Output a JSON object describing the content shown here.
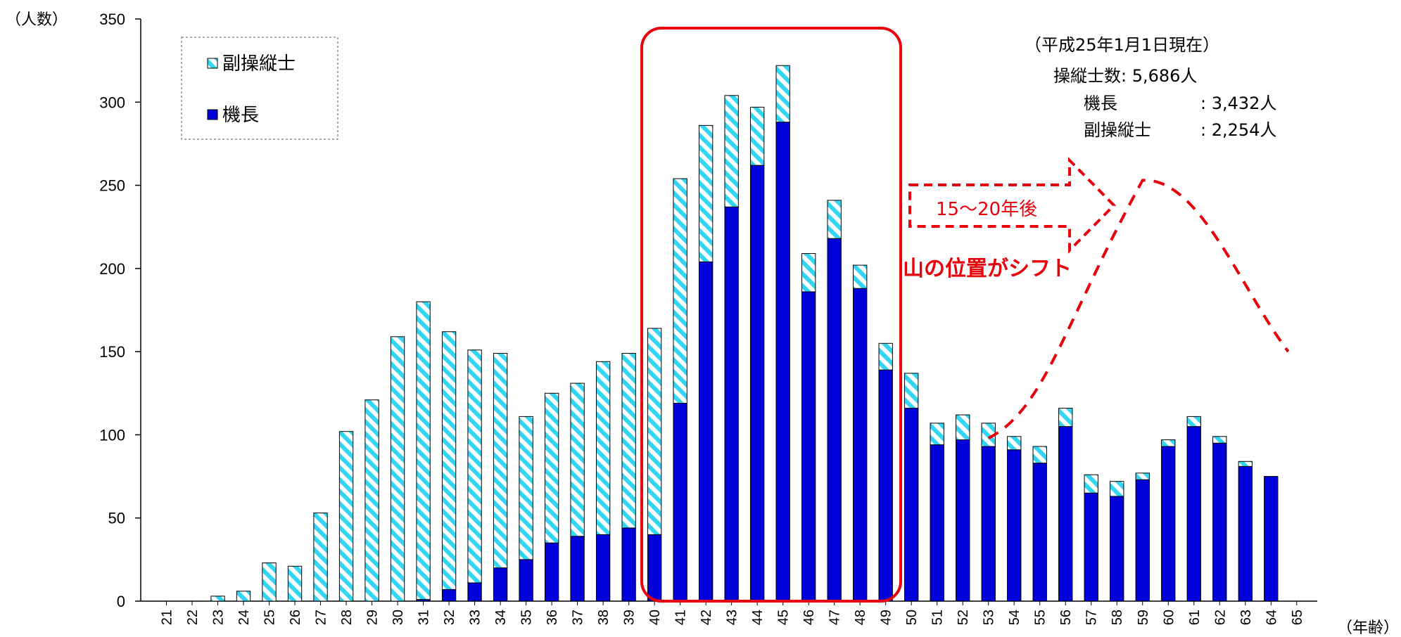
{
  "chart_data": {
    "type": "bar",
    "stacked": true,
    "ylabel": "（人数）",
    "xlabel": "（年齢）",
    "ylim": [
      0,
      350
    ],
    "yticks": [
      0,
      50,
      100,
      150,
      200,
      250,
      300,
      350
    ],
    "categories": [
      "21",
      "22",
      "23",
      "24",
      "25",
      "26",
      "27",
      "28",
      "29",
      "30",
      "31",
      "32",
      "33",
      "34",
      "35",
      "36",
      "37",
      "38",
      "39",
      "40",
      "41",
      "42",
      "43",
      "44",
      "45",
      "46",
      "47",
      "48",
      "49",
      "50",
      "51",
      "52",
      "53",
      "54",
      "55",
      "56",
      "57",
      "58",
      "59",
      "60",
      "61",
      "62",
      "63",
      "64",
      "65"
    ],
    "series": [
      {
        "name": "機長",
        "color": "#0000d8",
        "values": [
          0,
          0,
          0,
          0,
          0,
          0,
          0,
          0,
          0,
          0,
          1,
          7,
          11,
          20,
          25,
          35,
          39,
          40,
          44,
          40,
          119,
          204,
          237,
          262,
          288,
          186,
          218,
          188,
          139,
          116,
          94,
          97,
          93,
          91,
          83,
          105,
          65,
          63,
          73,
          93,
          105,
          95,
          81,
          75,
          0
        ]
      },
      {
        "name": "副操縦士",
        "color": "#33d6f2",
        "pattern": "diagonal-stripes",
        "values": [
          0,
          0,
          3,
          6,
          23,
          21,
          53,
          102,
          121,
          159,
          179,
          155,
          140,
          129,
          86,
          90,
          92,
          104,
          105,
          124,
          135,
          82,
          67,
          35,
          34,
          23,
          23,
          14,
          16,
          21,
          13,
          15,
          14,
          8,
          10,
          11,
          11,
          9,
          4,
          4,
          6,
          4,
          3,
          0,
          0
        ]
      }
    ],
    "legend": {
      "placement": "top-left",
      "items": [
        {
          "label": "副操縦士",
          "series": "副操縦士"
        },
        {
          "label": "機長",
          "series": "機長"
        }
      ]
    },
    "info_box": {
      "date": "（平成25年1月1日現在）",
      "total": "操縦士数:  5,686人",
      "captain_label": "機長",
      "captain_value": ":  3,432人",
      "first_officer_label": "副操縦士",
      "first_officer_value": ":  2,254人"
    },
    "annotations": {
      "highlight_range": [
        "40",
        "49"
      ],
      "highlight_color": "#e8000b",
      "arrow_text": "15～20年後",
      "shift_text": "山の位置がシフト",
      "projected_peak_category": "59",
      "projected_curve": [
        [
          53,
          98
        ],
        [
          59,
          253
        ],
        [
          65,
          150
        ]
      ]
    },
    "grid": false
  }
}
